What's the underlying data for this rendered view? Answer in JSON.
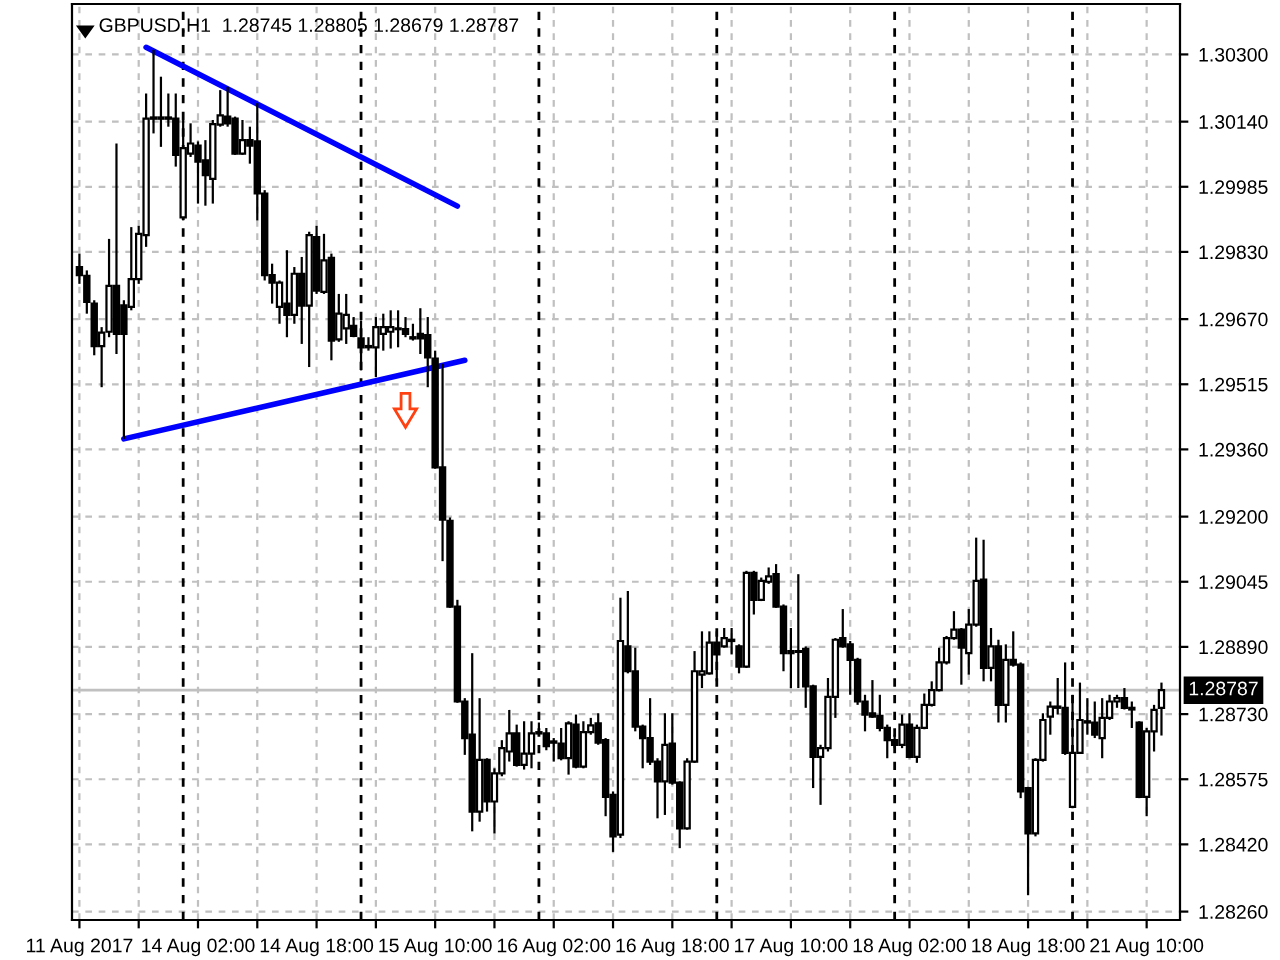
{
  "chart_data": {
    "type": "candlestick",
    "title": "GBPUSD,H1  1.28745 1.28805 1.28679 1.28787",
    "categories": [
      "11 Aug 2017",
      null,
      null,
      null,
      null,
      null,
      null,
      null,
      null,
      null,
      null,
      null,
      null,
      null,
      null,
      null,
      "14 Aug 02:00",
      null,
      null,
      null,
      null,
      null,
      null,
      null,
      null,
      null,
      null,
      null,
      null,
      null,
      null,
      null,
      "14 Aug 18:00",
      null,
      null,
      null,
      null,
      null,
      null,
      null,
      null,
      null,
      null,
      null,
      null,
      null,
      null,
      null,
      "15 Aug 10:00",
      null,
      null,
      null,
      null,
      null,
      null,
      null,
      null,
      null,
      null,
      null,
      null,
      null,
      null,
      null,
      "16 Aug 02:00",
      null,
      null,
      null,
      null,
      null,
      null,
      null,
      null,
      null,
      null,
      null,
      null,
      null,
      null,
      null,
      "16 Aug 18:00",
      null,
      null,
      null,
      null,
      null,
      null,
      null,
      null,
      null,
      null,
      null,
      null,
      null,
      null,
      null,
      "17 Aug 10:00",
      null,
      null,
      null,
      null,
      null,
      null,
      null,
      null,
      null,
      null,
      null,
      null,
      null,
      null,
      null,
      "18 Aug 02:00",
      null,
      null,
      null,
      null,
      null,
      null,
      null,
      null,
      null,
      null,
      null,
      null,
      null,
      null,
      null,
      "18 Aug 18:00",
      null,
      null,
      null,
      null,
      null,
      null,
      null,
      null,
      null,
      null,
      null,
      null,
      null,
      null,
      null,
      "21 Aug 10:00",
      null,
      null
    ],
    "ohlc": [
      [
        1.29794,
        1.29826,
        1.29754,
        1.29775
      ],
      [
        1.29773,
        1.29786,
        1.29683,
        1.29711
      ],
      [
        1.29707,
        1.29715,
        1.29584,
        1.29606
      ],
      [
        1.29606,
        1.29651,
        1.29508,
        1.29638
      ],
      [
        1.2964,
        1.29861,
        1.29627,
        1.29749
      ],
      [
        1.29749,
        1.30088,
        1.29587,
        1.29635
      ],
      [
        1.29703,
        1.29715,
        1.29385,
        1.29635
      ],
      [
        1.29699,
        1.29889,
        1.29691,
        1.29765
      ],
      [
        1.29765,
        1.29892,
        1.29754,
        1.29873
      ],
      [
        1.2987,
        1.30207,
        1.29842,
        1.30147
      ],
      [
        1.30147,
        1.30311,
        1.30112,
        1.3015
      ],
      [
        1.3015,
        1.30247,
        1.3008,
        1.30147
      ],
      [
        1.30147,
        1.30207,
        1.30128,
        1.3015
      ],
      [
        1.30147,
        1.30207,
        1.30033,
        1.30061
      ],
      [
        1.29912,
        1.30144,
        1.29905,
        1.30077
      ],
      [
        1.30064,
        1.30136,
        1.30056,
        1.30088
      ],
      [
        1.30083,
        1.30093,
        1.29945,
        1.30045
      ],
      [
        1.30048,
        1.30096,
        1.2994,
        1.30013
      ],
      [
        1.30004,
        1.30144,
        1.29945,
        1.30134
      ],
      [
        1.30133,
        1.30215,
        1.30128,
        1.30155
      ],
      [
        1.30152,
        1.30223,
        1.30128,
        1.30136
      ],
      [
        1.30147,
        1.30152,
        1.30061,
        1.30064
      ],
      [
        1.30064,
        1.30144,
        1.30061,
        1.30096
      ],
      [
        1.30096,
        1.30128,
        1.3004,
        1.30083
      ],
      [
        1.30093,
        1.30184,
        1.29905,
        1.29969
      ],
      [
        1.29969,
        1.29977,
        1.29762,
        1.29775
      ],
      [
        1.29775,
        1.29802,
        1.29707,
        1.29757
      ],
      [
        1.29699,
        1.29762,
        1.29659,
        1.29757
      ],
      [
        1.29707,
        1.29834,
        1.29627,
        1.2968
      ],
      [
        1.2968,
        1.29794,
        1.29659,
        1.29778
      ],
      [
        1.29778,
        1.29818,
        1.29611,
        1.29702
      ],
      [
        1.29702,
        1.29878,
        1.29556,
        1.2987
      ],
      [
        1.29865,
        1.29892,
        1.2973,
        1.29738
      ],
      [
        1.29735,
        1.29873,
        1.2973,
        1.2981
      ],
      [
        1.29816,
        1.29826,
        1.29572,
        1.29619
      ],
      [
        1.29622,
        1.2973,
        1.29616,
        1.29683
      ],
      [
        1.29648,
        1.2973,
        1.29611,
        1.2968
      ],
      [
        1.29654,
        1.29675,
        1.29627,
        1.2963
      ],
      [
        1.29624,
        1.29667,
        1.29548,
        1.29603
      ],
      [
        1.29603,
        1.29627,
        1.29595,
        1.29606
      ],
      [
        1.29603,
        1.29675,
        1.29532,
        1.29651
      ],
      [
        1.29635,
        1.29683,
        1.29595,
        1.29651
      ],
      [
        1.2964,
        1.29691,
        1.296,
        1.29651
      ],
      [
        1.29646,
        1.29691,
        1.29603,
        1.29648
      ],
      [
        1.29646,
        1.29675,
        1.29627,
        1.29635
      ],
      [
        1.29627,
        1.29659,
        1.29619,
        1.29624
      ],
      [
        1.29635,
        1.29696,
        1.29587,
        1.29624
      ],
      [
        1.29632,
        1.29675,
        1.29508,
        1.29579
      ],
      [
        1.29576,
        1.29595,
        1.29314,
        1.29317
      ],
      [
        1.29317,
        1.29564,
        1.29094,
        1.29193
      ],
      [
        1.2919,
        1.29198,
        1.28983,
        1.28986
      ],
      [
        1.28986,
        1.29002,
        1.28757,
        1.2876
      ],
      [
        1.2876,
        1.28768,
        1.28633,
        1.28673
      ],
      [
        1.28681,
        1.28875,
        1.28451,
        1.28498
      ],
      [
        1.28498,
        1.28768,
        1.28474,
        1.28621
      ],
      [
        1.28621,
        1.28625,
        1.28498,
        1.28522
      ],
      [
        1.28522,
        1.28601,
        1.28446,
        1.28589
      ],
      [
        1.28589,
        1.28668,
        1.28582,
        1.28649
      ],
      [
        1.28641,
        1.2874,
        1.28617,
        1.28684
      ],
      [
        1.28684,
        1.28705,
        1.28605,
        1.28609
      ],
      [
        1.28609,
        1.28713,
        1.28598,
        1.28636
      ],
      [
        1.28636,
        1.28713,
        1.28601,
        1.28684
      ],
      [
        1.28684,
        1.2871,
        1.28681,
        1.28687
      ],
      [
        1.28684,
        1.28697,
        1.28644,
        1.28654
      ],
      [
        1.28665,
        1.28673,
        1.28617,
        1.28662
      ],
      [
        1.2866,
        1.28697,
        1.2862,
        1.28625
      ],
      [
        1.28625,
        1.28713,
        1.28586,
        1.28708
      ],
      [
        1.28705,
        1.28729,
        1.28601,
        1.28605
      ],
      [
        1.28605,
        1.28713,
        1.28601,
        1.28687
      ],
      [
        1.28687,
        1.28721,
        1.28681,
        1.28703
      ],
      [
        1.28708,
        1.28732,
        1.28657,
        1.28662
      ],
      [
        1.28668,
        1.28673,
        1.28487,
        1.28533
      ],
      [
        1.28538,
        1.28546,
        1.28402,
        1.28439
      ],
      [
        1.28443,
        1.29007,
        1.28435,
        1.28904
      ],
      [
        1.28891,
        1.29023,
        1.28827,
        1.28832
      ],
      [
        1.28832,
        1.28888,
        1.28689,
        1.287
      ],
      [
        1.287,
        1.28705,
        1.28601,
        1.28673
      ],
      [
        1.28673,
        1.28768,
        1.28609,
        1.28617
      ],
      [
        1.28617,
        1.28625,
        1.28482,
        1.2857
      ],
      [
        1.2857,
        1.28732,
        1.2849,
        1.28657
      ],
      [
        1.2866,
        1.28732,
        1.28562,
        1.28567
      ],
      [
        1.28567,
        1.2857,
        1.28411,
        1.28458
      ],
      [
        1.28458,
        1.28625,
        1.28455,
        1.28617
      ],
      [
        1.28617,
        1.2888,
        1.28614,
        1.28832
      ],
      [
        1.28824,
        1.28927,
        1.28792,
        1.28832
      ],
      [
        1.28827,
        1.28927,
        1.28824,
        1.289
      ],
      [
        1.289,
        1.28927,
        1.28808,
        1.28872
      ],
      [
        1.28891,
        1.28935,
        1.28888,
        1.28911
      ],
      [
        1.28904,
        1.28935,
        1.28872,
        1.28907
      ],
      [
        1.28891,
        1.28896,
        1.28827,
        1.28843
      ],
      [
        1.28843,
        1.29071,
        1.2884,
        1.29066
      ],
      [
        1.29066,
        1.29071,
        1.28967,
        1.29002
      ],
      [
        1.29002,
        1.29055,
        1.28999,
        1.29047
      ],
      [
        1.29045,
        1.29079,
        1.2904,
        1.29058
      ],
      [
        1.29063,
        1.29087,
        1.28983,
        1.28986
      ],
      [
        1.28986,
        1.28991,
        1.28832,
        1.28875
      ],
      [
        1.2888,
        1.28935,
        1.28792,
        1.28875
      ],
      [
        1.28878,
        1.29063,
        1.28792,
        1.2888
      ],
      [
        1.28885,
        1.28891,
        1.28745,
        1.28796
      ],
      [
        1.28796,
        1.288,
        1.28554,
        1.28628
      ],
      [
        1.28628,
        1.28657,
        1.28514,
        1.28649
      ],
      [
        1.28649,
        1.28816,
        1.28641,
        1.28771
      ],
      [
        1.28771,
        1.28911,
        1.28721,
        1.28907
      ],
      [
        1.28911,
        1.2898,
        1.28888,
        1.28891
      ],
      [
        1.28896,
        1.28904,
        1.28776,
        1.28859
      ],
      [
        1.28859,
        1.28864,
        1.28752,
        1.2876
      ],
      [
        1.2876,
        1.28776,
        1.28689,
        1.28729
      ],
      [
        1.28732,
        1.28811,
        1.28721,
        1.28724
      ],
      [
        1.28726,
        1.28776,
        1.28689,
        1.28697
      ],
      [
        1.28697,
        1.28705,
        1.28625,
        1.28668
      ],
      [
        1.28668,
        1.28681,
        1.28649,
        1.28657
      ],
      [
        1.28657,
        1.28729,
        1.28649,
        1.28705
      ],
      [
        1.28705,
        1.28732,
        1.28625,
        1.28628
      ],
      [
        1.28628,
        1.28705,
        1.28614,
        1.28697
      ],
      [
        1.28697,
        1.28779,
        1.28694,
        1.28752
      ],
      [
        1.28752,
        1.28808,
        1.28748,
        1.28787
      ],
      [
        1.28787,
        1.28888,
        1.28784,
        1.28853
      ],
      [
        1.28853,
        1.28916,
        1.28848,
        1.28911
      ],
      [
        1.28911,
        1.28975,
        1.28907,
        1.28931
      ],
      [
        1.28931,
        1.28935,
        1.288,
        1.28888
      ],
      [
        1.28875,
        1.2898,
        1.28824,
        1.28943
      ],
      [
        1.28943,
        1.2915,
        1.28938,
        1.29047
      ],
      [
        1.2905,
        1.29145,
        1.28808,
        1.2884
      ],
      [
        1.2884,
        1.28935,
        1.28808,
        1.28891
      ],
      [
        1.28891,
        1.28907,
        1.2871,
        1.28752
      ],
      [
        1.28752,
        1.28896,
        1.2871,
        1.28859
      ],
      [
        1.28859,
        1.28927,
        1.28843,
        1.28848
      ],
      [
        1.28848,
        1.28853,
        1.2853,
        1.28546
      ],
      [
        1.28554,
        1.28557,
        1.28299,
        1.28446
      ],
      [
        1.28446,
        1.28625,
        1.28439,
        1.28621
      ],
      [
        1.28621,
        1.28732,
        1.28617,
        1.28716
      ],
      [
        1.28724,
        1.2876,
        1.28681,
        1.28748
      ],
      [
        1.28745,
        1.28816,
        1.28729,
        1.28748
      ],
      [
        1.28745,
        1.28853,
        1.28633,
        1.28638
      ],
      [
        1.28509,
        1.28776,
        1.28506,
        1.28638
      ],
      [
        1.28638,
        1.28805,
        1.28636,
        1.28716
      ],
      [
        1.2871,
        1.28768,
        1.28681,
        1.28713
      ],
      [
        1.2871,
        1.2876,
        1.28673,
        1.28681
      ],
      [
        1.28673,
        1.28768,
        1.28625,
        1.28721
      ],
      [
        1.28721,
        1.28776,
        1.28716,
        1.2876
      ],
      [
        1.2876,
        1.28776,
        1.28745,
        1.28768
      ],
      [
        1.28768,
        1.28792,
        1.28741,
        1.28745
      ],
      [
        1.28741,
        1.2876,
        1.28697,
        1.28745
      ],
      [
        1.2871,
        1.28713,
        1.2853,
        1.28533
      ],
      [
        1.28533,
        1.28697,
        1.28487,
        1.28689
      ],
      [
        1.28689,
        1.28752,
        1.28641,
        1.2874
      ],
      [
        1.28745,
        1.28805,
        1.28679,
        1.28787
      ]
    ],
    "series": [
      {
        "type": "line",
        "color": "#0000ff",
        "values": [
          null,
          null,
          null,
          null,
          null,
          null,
          null,
          null,
          null,
          1.30317,
          null,
          null,
          null,
          null,
          null,
          null,
          null,
          null,
          null,
          null,
          null,
          null,
          null,
          null,
          null,
          null,
          null,
          null,
          null,
          null,
          null,
          null,
          null,
          null,
          null,
          null,
          null,
          null,
          null,
          null,
          null,
          null,
          null,
          null,
          null,
          null,
          null,
          null,
          null,
          null,
          null,
          1.29939,
          null,
          null,
          null,
          null,
          null,
          null,
          null,
          null,
          null,
          null,
          null,
          null,
          null,
          null,
          null,
          null,
          null,
          null,
          null,
          null,
          null,
          null,
          null,
          null,
          null,
          null,
          null,
          null,
          null,
          null,
          null,
          null,
          null,
          null,
          null,
          null,
          null,
          null,
          null,
          null,
          null,
          null,
          null,
          null,
          null,
          null,
          null,
          null,
          null,
          null,
          null,
          null,
          null,
          null,
          null,
          null,
          null,
          null,
          null,
          null,
          null,
          null,
          null,
          null,
          null,
          null,
          null,
          null,
          null,
          null,
          null,
          null,
          null,
          null,
          null,
          null,
          null,
          null,
          null,
          null,
          null,
          null,
          null,
          null,
          null,
          null,
          null,
          null,
          null,
          null,
          null,
          null,
          null,
          null,
          null
        ]
      },
      {
        "type": "line",
        "color": "#0000ff",
        "values": [
          null,
          null,
          null,
          null,
          null,
          null,
          1.29385,
          null,
          null,
          null,
          null,
          null,
          null,
          null,
          null,
          null,
          null,
          null,
          null,
          null,
          null,
          null,
          null,
          null,
          null,
          null,
          null,
          null,
          null,
          null,
          null,
          null,
          null,
          null,
          null,
          null,
          null,
          null,
          null,
          null,
          null,
          null,
          null,
          null,
          null,
          null,
          null,
          null,
          null,
          null,
          null,
          null,
          1.29572,
          null,
          null,
          null,
          null,
          null,
          null,
          null,
          null,
          null,
          null,
          null,
          null,
          null,
          null,
          null,
          null,
          null,
          null,
          null,
          null,
          null,
          null,
          null,
          null,
          null,
          null,
          null,
          null,
          null,
          null,
          null,
          null,
          null,
          null,
          null,
          null,
          null,
          null,
          null,
          null,
          null,
          null,
          null,
          null,
          null,
          null,
          null,
          null,
          null,
          null,
          null,
          null,
          null,
          null,
          null,
          null,
          null,
          null,
          null,
          null,
          null,
          null,
          null,
          null,
          null,
          null,
          null,
          null,
          null,
          null,
          null,
          null,
          null,
          null,
          null,
          null,
          null,
          null,
          null,
          null,
          null,
          null,
          null,
          null,
          null,
          null,
          null,
          null,
          null,
          null,
          null,
          null,
          null,
          null
        ]
      }
    ],
    "ylim": [
      1.2824,
      1.3042
    ],
    "yticks": [
      {
        "value": 1.303,
        "label": "1.30300"
      },
      {
        "value": 1.3014,
        "label": "1.30140"
      },
      {
        "value": 1.29985,
        "label": "1.29985"
      },
      {
        "value": 1.2983,
        "label": "1.29830"
      },
      {
        "value": 1.2967,
        "label": "1.29670"
      },
      {
        "value": 1.29515,
        "label": "1.29515"
      },
      {
        "value": 1.2936,
        "label": "1.29360"
      },
      {
        "value": 1.292,
        "label": "1.29200"
      },
      {
        "value": 1.29045,
        "label": "1.29045"
      },
      {
        "value": 1.2889,
        "label": "1.28890"
      },
      {
        "value": 1.2873,
        "label": "1.28730"
      },
      {
        "value": 1.28575,
        "label": "1.28575"
      },
      {
        "value": 1.2842,
        "label": "1.28420"
      },
      {
        "value": 1.2826,
        "label": "1.28260"
      }
    ],
    "grid": true,
    "ref_lines": [
      {
        "axis": "y",
        "value": 1.28787,
        "label": "1.28787",
        "color": "#c0c0c0",
        "line_style": "solid"
      }
    ]
  }
}
